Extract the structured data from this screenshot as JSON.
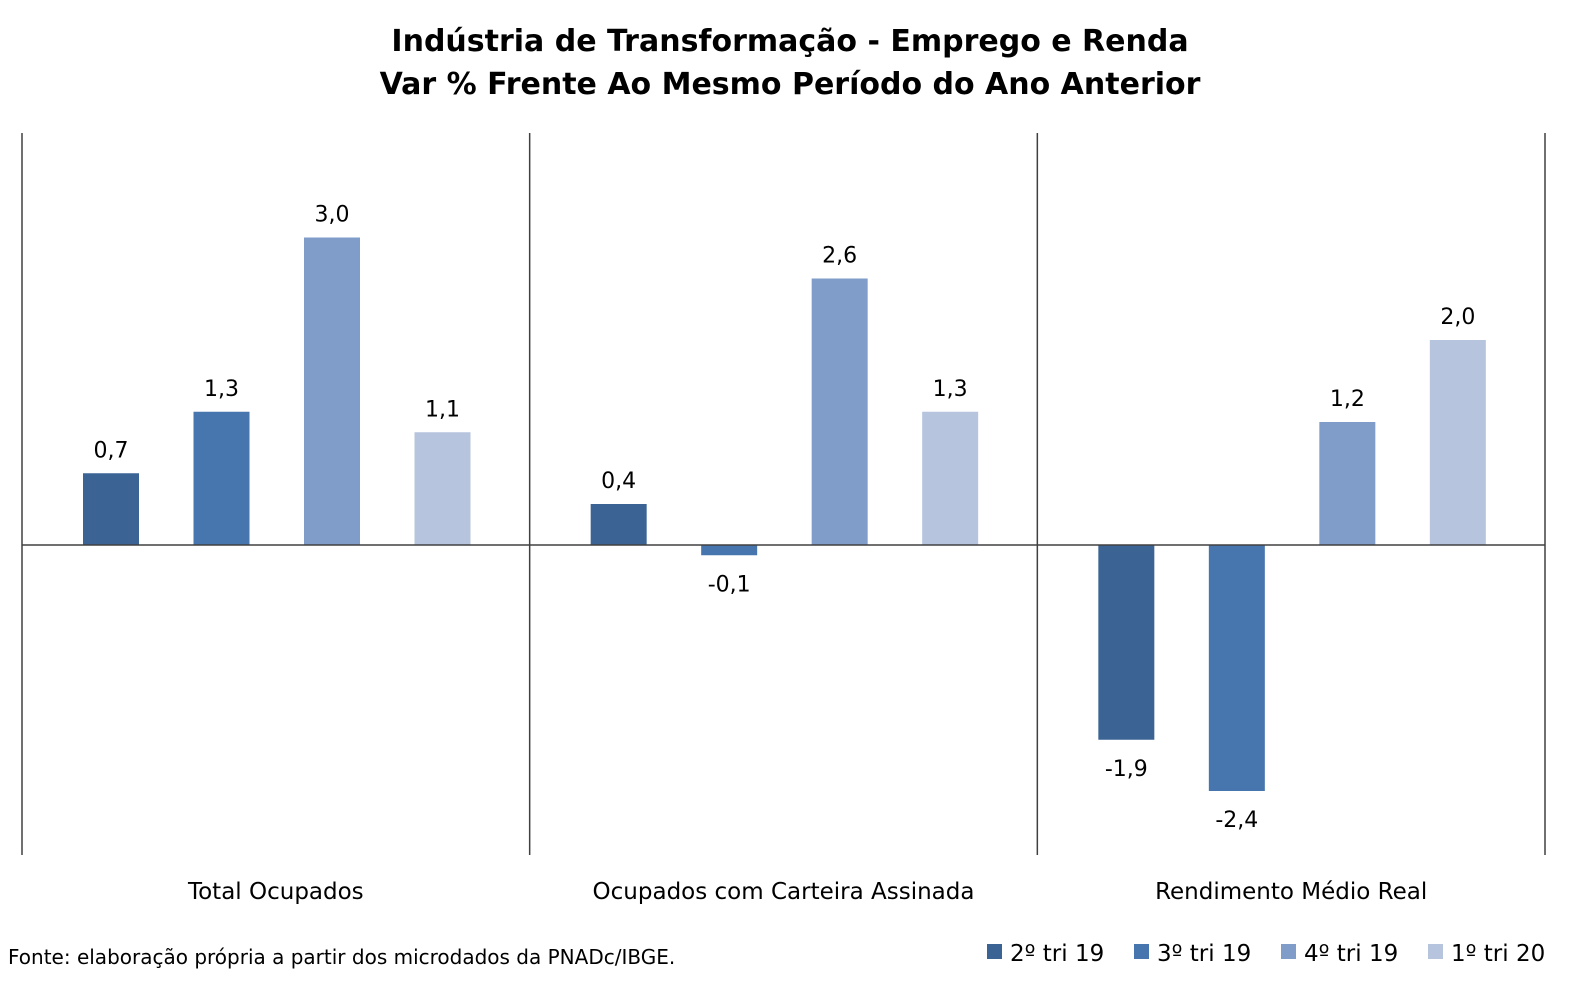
{
  "chart_data": {
    "type": "bar",
    "title": "Indústria de Transformação - Emprego e Renda",
    "subtitle": "Var % Frente Ao Mesmo Período do Ano Anterior",
    "categories": [
      "Total Ocupados",
      "Ocupados com Carteira Assinada",
      "Rendimento Médio Real"
    ],
    "series": [
      {
        "name": "2º tri 19",
        "color": "#3B6495",
        "values": [
          0.7,
          0.4,
          -1.9
        ],
        "labels": [
          "0,7",
          "0,4",
          "-1,9"
        ]
      },
      {
        "name": "3º tri 19",
        "color": "#4775AE",
        "values": [
          1.3,
          -0.1,
          -2.4
        ],
        "labels": [
          "1,3",
          "-0,1",
          "-2,4"
        ]
      },
      {
        "name": "4º tri 19",
        "color": "#7F9DC8",
        "values": [
          3.0,
          2.6,
          1.2
        ],
        "labels": [
          "3,0",
          "2,6",
          "1,2"
        ]
      },
      {
        "name": "1º tri 20",
        "color": "#B6C4DE",
        "values": [
          1.1,
          1.3,
          2.0
        ],
        "labels": [
          "1,1",
          "1,3",
          "2,0"
        ]
      }
    ],
    "ylim": [
      -3.0,
      4.0
    ],
    "grid": false,
    "legend_position": "bottom-right",
    "source_note": "Fonte: elaboração própria a partir dos microdados da PNADc/IBGE."
  }
}
